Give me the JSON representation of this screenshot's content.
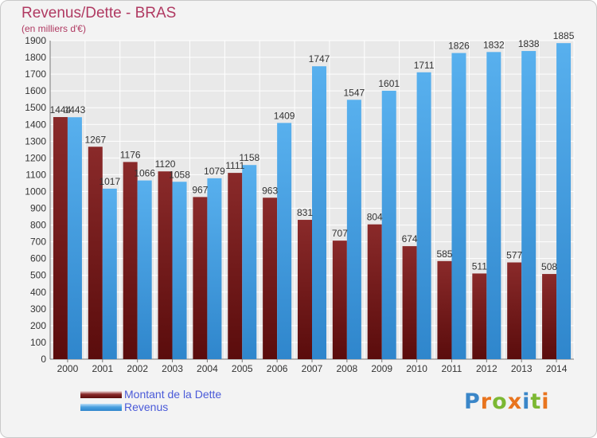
{
  "title": "Revenus/Dette - BRAS",
  "subtitle": "(en milliers d'€)",
  "logo": {
    "text": "Proxiti",
    "letters": [
      "P",
      "r",
      "o",
      "x",
      "i",
      "t",
      "i"
    ],
    "colors": [
      "#3a86c8",
      "#e8741e",
      "#7cb833",
      "#e8741e",
      "#3a86c8",
      "#7cb833",
      "#e8741e"
    ]
  },
  "colors": {
    "dette": "#7a1c1c",
    "revenus": "#4aa0e0",
    "background": "#f3f3f3",
    "grid": "#ffffff",
    "title": "#b03a62"
  },
  "chart_data": {
    "type": "bar",
    "categories": [
      "2000",
      "2001",
      "2002",
      "2003",
      "2004",
      "2005",
      "2006",
      "2007",
      "2008",
      "2009",
      "2010",
      "2011",
      "2012",
      "2013",
      "2014"
    ],
    "series": [
      {
        "name": "Montant de la Dette",
        "values": [
          1444,
          1267,
          1176,
          1120,
          967,
          1111,
          963,
          831,
          707,
          804,
          674,
          585,
          511,
          577,
          508
        ]
      },
      {
        "name": "Revenus",
        "values": [
          1443,
          1017,
          1066,
          1058,
          1079,
          1158,
          1409,
          1747,
          1547,
          1601,
          1711,
          1826,
          1832,
          1838,
          1885
        ]
      }
    ],
    "ylim": [
      0,
      1900
    ],
    "yticks": [
      0,
      100,
      200,
      300,
      400,
      500,
      600,
      700,
      800,
      900,
      1000,
      1100,
      1200,
      1300,
      1400,
      1500,
      1600,
      1700,
      1800,
      1900
    ],
    "grid": true,
    "legend": "bottom-left"
  }
}
